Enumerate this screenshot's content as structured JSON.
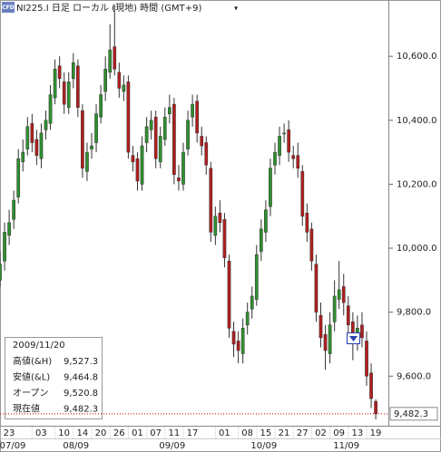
{
  "header": {
    "logo": "CFD",
    "title": "NI225.I 日足 ローカル (現地) 時間 (GMT+9)",
    "menu": "▾"
  },
  "info": {
    "date": "2009/11/20",
    "rows": [
      {
        "label": "高値(&H)",
        "value": "9,527.3"
      },
      {
        "label": "安値(&L)",
        "value": "9,464.8"
      },
      {
        "label": "オープン",
        "value": "9,520.8"
      },
      {
        "label": "現在値",
        "value": "9,482.3"
      }
    ]
  },
  "chart_data": {
    "type": "candlestick",
    "categories": [
      null,
      "23",
      null,
      null,
      null,
      null,
      null,
      null,
      "03",
      null,
      null,
      null,
      null,
      "10",
      null,
      null,
      null,
      "14",
      null,
      null,
      null,
      "20",
      null,
      null,
      null,
      "26",
      null,
      null,
      null,
      "01",
      null,
      null,
      null,
      "07",
      null,
      null,
      null,
      "11",
      null,
      null,
      null,
      "17",
      null,
      null,
      null,
      null,
      null,
      null,
      "01",
      null,
      null,
      null,
      null,
      "08",
      null,
      null,
      null,
      "15",
      null,
      null,
      null,
      "21",
      null,
      null,
      null,
      "27",
      null,
      null,
      null,
      "02",
      null,
      null,
      null,
      "09",
      null,
      null,
      null,
      "13",
      null,
      null,
      null,
      "19",
      null
    ],
    "months": [
      "07/09",
      null,
      null,
      null,
      null,
      null,
      null,
      null,
      null,
      null,
      null,
      null,
      null,
      null,
      null,
      "08/09",
      null,
      null,
      null,
      null,
      null,
      null,
      null,
      null,
      null,
      null,
      null,
      null,
      null,
      null,
      null,
      null,
      null,
      null,
      null,
      null,
      "09/09",
      null,
      null,
      null,
      null,
      null,
      null,
      null,
      null,
      null,
      null,
      null,
      null,
      null,
      null,
      null,
      null,
      null,
      null,
      null,
      "10/09",
      null,
      null,
      null,
      null,
      null,
      null,
      null,
      null,
      null,
      null,
      null,
      null,
      null,
      null,
      null,
      null,
      null,
      "11/09",
      null,
      null,
      null,
      null,
      null,
      null,
      null,
      null
    ],
    "open": [
      9900,
      9960,
      10040,
      10090,
      10160,
      10270,
      10310,
      10390,
      10340,
      10280,
      10370,
      10390,
      10470,
      10570,
      10520,
      10440,
      10530,
      10570,
      10430,
      10240,
      10310,
      10330,
      10410,
      10490,
      10550,
      10630,
      10550,
      10490,
      10520,
      10290,
      10280,
      10200,
      10330,
      10370,
      10410,
      10270,
      10340,
      10420,
      10450,
      10220,
      10200,
      10310,
      10410,
      10460,
      10350,
      10330,
      10250,
      10040,
      10110,
      10090,
      9960,
      9740,
      9710,
      9670,
      9760,
      9810,
      9840,
      9990,
      10050,
      10130,
      10260,
      10290,
      10360,
      10370,
      10290,
      10290,
      10240,
      10110,
      10060,
      9950,
      9790,
      9730,
      9670,
      9770,
      9840,
      9880,
      9820,
      9770,
      9710,
      9760,
      9710,
      9610,
      9520.8
    ],
    "high": [
      9990,
      10080,
      10120,
      10180,
      10310,
      10340,
      10410,
      10420,
      10370,
      10390,
      10430,
      10510,
      10590,
      10600,
      10550,
      10550,
      10610,
      10590,
      10450,
      10330,
      10360,
      10450,
      10510,
      10600,
      10700,
      10760,
      10580,
      10540,
      10540,
      10320,
      10300,
      10350,
      10410,
      10430,
      10430,
      10380,
      10440,
      10480,
      10470,
      10260,
      10330,
      10430,
      10480,
      10480,
      10380,
      10350,
      10270,
      10130,
      10150,
      10110,
      9980,
      9770,
      9740,
      9780,
      9830,
      9880,
      10010,
      10090,
      10150,
      10280,
      10330,
      10380,
      10390,
      10400,
      10320,
      10330,
      10260,
      10140,
      10080,
      9980,
      9830,
      9760,
      9800,
      9900,
      9960,
      9920,
      9850,
      9800,
      9790,
      9800,
      9740,
      9640,
      9527.3
    ],
    "low": [
      9880,
      9930,
      10010,
      10060,
      10140,
      10240,
      10290,
      10300,
      10260,
      10250,
      10340,
      10370,
      10450,
      10500,
      10420,
      10420,
      10500,
      10410,
      10220,
      10210,
      10280,
      10300,
      10390,
      10460,
      10530,
      10540,
      10470,
      10460,
      10280,
      10240,
      10180,
      10180,
      10300,
      10340,
      10250,
      10250,
      10320,
      10390,
      10200,
      10180,
      10180,
      10290,
      10380,
      10330,
      10290,
      10230,
      10020,
      10010,
      10050,
      9940,
      9720,
      9660,
      9640,
      9640,
      9730,
      9780,
      9820,
      9960,
      10020,
      10100,
      10230,
      10260,
      10330,
      10270,
      10250,
      10220,
      10070,
      10020,
      9930,
      9770,
      9690,
      9620,
      9640,
      9740,
      9810,
      9790,
      9720,
      9650,
      9680,
      9690,
      9570,
      9500,
      9464.8
    ],
    "close": [
      9950,
      10050,
      10080,
      10150,
      10280,
      10300,
      10380,
      10330,
      10290,
      10360,
      10400,
      10480,
      10560,
      10530,
      10450,
      10520,
      10580,
      10440,
      10250,
      10300,
      10320,
      10420,
      10480,
      10560,
      10620,
      10560,
      10500,
      10510,
      10300,
      10270,
      10210,
      10320,
      10380,
      10400,
      10280,
      10350,
      10410,
      10440,
      10230,
      10210,
      10300,
      10400,
      10450,
      10360,
      10320,
      10260,
      10050,
      10100,
      10080,
      9970,
      9750,
      9700,
      9680,
      9750,
      9800,
      9850,
      9980,
      10060,
      10120,
      10250,
      10300,
      10350,
      10360,
      10300,
      10280,
      10250,
      10100,
      10050,
      9960,
      9800,
      9720,
      9680,
      9760,
      9850,
      9870,
      9830,
      9760,
      9720,
      9750,
      9720,
      9600,
      9530,
      9482.3
    ],
    "last_price_label": "9,482.3",
    "up_color": "#2f8f2f",
    "down_color": "#b01e1e",
    "last_line_color": "#d00000",
    "ylim": [
      9445,
      10776
    ],
    "yticks": [
      {
        "value": 9600,
        "label": "9,600.0"
      },
      {
        "value": 9800,
        "label": "9,800.0"
      },
      {
        "value": 10000,
        "label": "10,000.0"
      },
      {
        "value": 10200,
        "label": "10,200.0"
      },
      {
        "value": 10400,
        "label": "10,400.0"
      },
      {
        "value": 10600,
        "label": "10,600.0"
      }
    ]
  }
}
